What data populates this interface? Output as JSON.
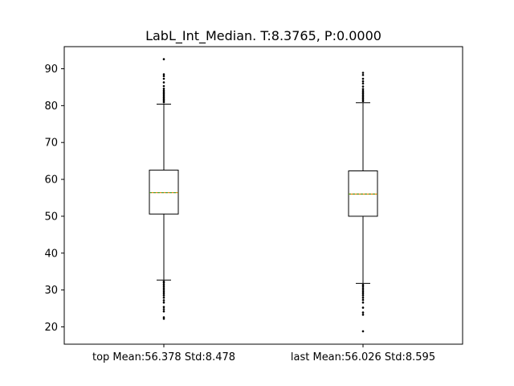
{
  "chart_data": {
    "type": "box",
    "title": "LabL_Int_Median. T:8.3765, P:0.0000",
    "xlabel": "",
    "ylabel": "",
    "ylim": [
      15.3,
      96.0
    ],
    "yticks": [
      20,
      30,
      40,
      50,
      60,
      70,
      80,
      90
    ],
    "grid": false,
    "categories": [
      "top Mean:56.378 Std:8.478",
      "last Mean:56.026 Std:8.595"
    ],
    "boxes": [
      {
        "q1": 50.6,
        "median": 56.4,
        "mean": 56.378,
        "q3": 62.5,
        "whisker_low": 32.7,
        "whisker_high": 80.4,
        "outliers": [
          22.2,
          22.6,
          24.2,
          24.8,
          25.4,
          26.6,
          27.2,
          27.9,
          28.5,
          29.0,
          29.5,
          30.0,
          30.5,
          31.0,
          31.5,
          32.0,
          32.3,
          80.9,
          81.3,
          81.7,
          82.1,
          82.5,
          82.9,
          83.3,
          83.7,
          84.1,
          84.6,
          85.3,
          86.3,
          87.3,
          88.0,
          88.5,
          92.6
        ]
      },
      {
        "q1": 50.0,
        "median": 56.0,
        "mean": 56.026,
        "q3": 62.3,
        "whisker_low": 31.8,
        "whisker_high": 80.8,
        "outliers": [
          18.8,
          23.3,
          23.9,
          25.2,
          26.6,
          27.3,
          27.9,
          28.5,
          29.0,
          29.5,
          30.0,
          30.5,
          31.0,
          31.4,
          81.2,
          81.6,
          82.0,
          82.4,
          82.8,
          83.2,
          83.6,
          84.0,
          84.5,
          85.2,
          86.0,
          86.6,
          87.3,
          88.3,
          88.9
        ]
      }
    ],
    "colors": {
      "box": "#000000",
      "median": "#ff7f0e",
      "mean": "#2ca02c",
      "outlier": "#000000"
    }
  }
}
